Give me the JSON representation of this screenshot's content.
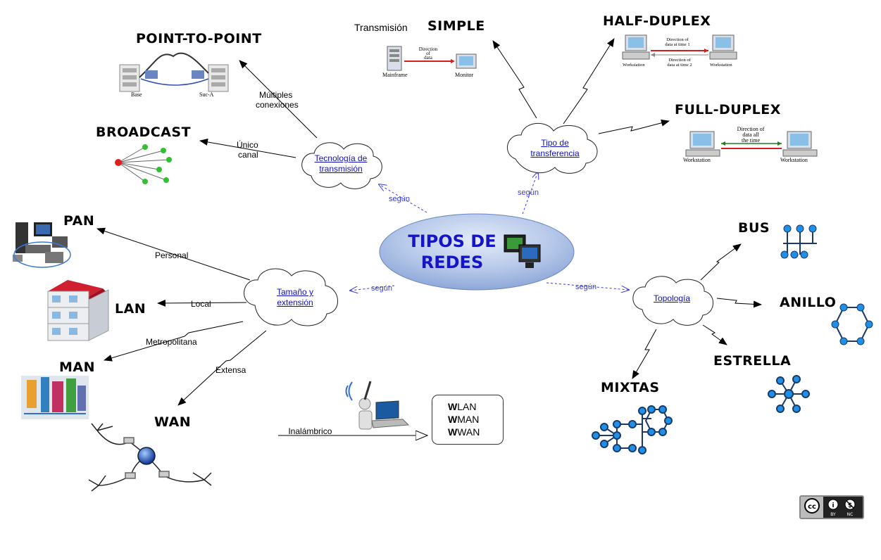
{
  "center": {
    "line1": "TIPOS DE",
    "line2": "REDES"
  },
  "nodes": {
    "tecnologia": {
      "line1": "Tecnología de",
      "line2": "transmisión"
    },
    "tipo": {
      "line1": "Tipo de",
      "line2": "transferencia"
    },
    "tamano": {
      "line1": "Tamaño y",
      "line2": "extensión"
    },
    "topologia": {
      "line1": "Topología"
    }
  },
  "edge_labels": {
    "segun": "según",
    "multiples1": "Múltiples",
    "multiples2": "conexiones",
    "unico1": "Único",
    "unico2": "canal",
    "transmision": "Transmisión",
    "personal": "Personal",
    "local": "Local",
    "metropolitana": "Metropolitana",
    "extensa": "Extensa",
    "inalambrico": "__Inalámbrico"
  },
  "titles": {
    "point_to_point": "POINT-TO-POINT",
    "broadcast": "BROADCAST",
    "simple": "SIMPLE",
    "half_duplex": "HALF-DUPLEX",
    "full_duplex": "FULL-DUPLEX",
    "pan": "PAN",
    "lan": "LAN",
    "man": "MAN",
    "wan": "WAN",
    "bus": "BUS",
    "anillo": "ANILLO",
    "estrella": "ESTRELLA",
    "mixtas": "MIXTAS"
  },
  "wireless": [
    {
      "bold": "W",
      "rest": "LAN"
    },
    {
      "bold": "W",
      "rest": "MAN"
    },
    {
      "bold": "W",
      "rest": "WAN"
    }
  ],
  "illustration_text": {
    "base": "Base",
    "suc_a": "Suc-A",
    "mainframe": "Mainframe",
    "monitor": "Monitor",
    "dir_data_1": "Direction",
    "dir_data_2": "of",
    "dir_data_3": "data",
    "half_t1a": "Direction of",
    "half_t1b": "data at time 1",
    "half_t2a": "Direction of",
    "half_t2b": "data at time 2",
    "workstation": "Workstation",
    "full_a": "Direction of",
    "full_b": "data all",
    "full_c": "the time"
  },
  "license": {
    "by": "BY",
    "nc": "NC"
  },
  "colors": {
    "center_fill": "#a9bfe6",
    "center_text": "#1515c8",
    "link": "#1010c0",
    "segun": "#3a3ae0",
    "topology_node": "#1e90e8",
    "topology_edge": "#1a3a6a"
  }
}
